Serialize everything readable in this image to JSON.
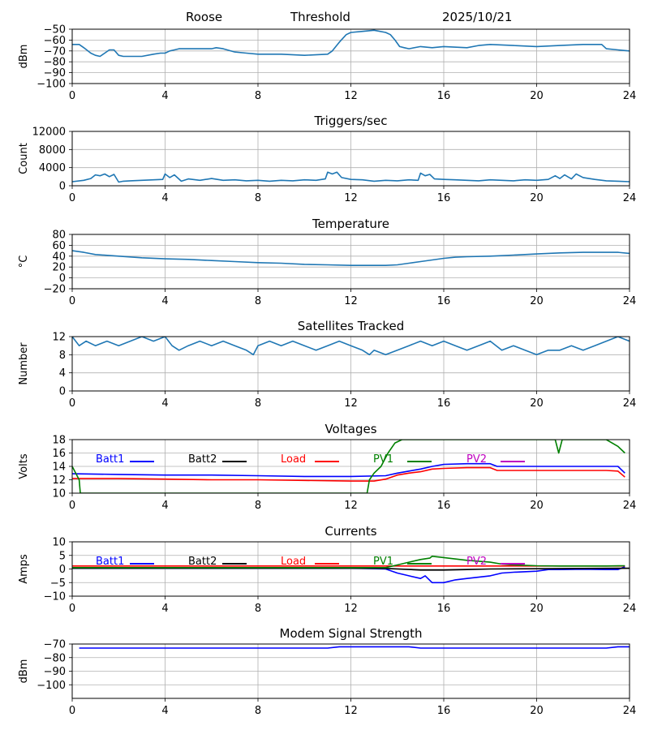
{
  "header": {
    "station": "Roose",
    "plot_kind": "Threshold",
    "date": "2025/10/21"
  },
  "colors": {
    "default_line": "#1f77b4",
    "batt1": "#0000ff",
    "batt2": "#000000",
    "load": "#ff0000",
    "pv1": "#008000",
    "pv2": "#bf00bf",
    "grid": "#b0b0b0"
  },
  "chart_data": [
    {
      "type": "line",
      "title": "",
      "xlabel": "",
      "ylabel": "dBm",
      "xlim": [
        0,
        24
      ],
      "ylim": [
        -100,
        -50
      ],
      "xticks": [
        "0",
        "4",
        "8",
        "12",
        "16",
        "20",
        "24"
      ],
      "yticks": [
        -100,
        -90,
        -80,
        -70,
        -60,
        -50
      ],
      "grid": true,
      "series": [
        {
          "color": "#1f77b4",
          "x": [
            0,
            0.3,
            0.5,
            0.8,
            1,
            1.2,
            1.4,
            1.6,
            1.8,
            2,
            2.2,
            2.5,
            3,
            3.5,
            3.8,
            4,
            4.2,
            4.4,
            4.6,
            5,
            6,
            6.2,
            6.5,
            7,
            7.5,
            8,
            9,
            10,
            11,
            11.2,
            11.5,
            11.8,
            12,
            12.5,
            13,
            13.5,
            13.7,
            13.9,
            14.1,
            14.3,
            14.5,
            15,
            15.5,
            16,
            17,
            17.5,
            18,
            19,
            20,
            21,
            22,
            22.8,
            23,
            23.5,
            24
          ],
          "y": [
            -64,
            -64,
            -67,
            -72,
            -74,
            -75,
            -72,
            -69,
            -69,
            -74,
            -75,
            -75,
            -75,
            -73,
            -72,
            -72,
            -70,
            -69,
            -68,
            -68,
            -68,
            -67,
            -68,
            -71,
            -72,
            -73,
            -73,
            -74,
            -73,
            -70,
            -62,
            -55,
            -53,
            -52,
            -51,
            -53,
            -55,
            -60,
            -66,
            -67,
            -68,
            -66,
            -67,
            -66,
            -67,
            -65,
            -64,
            -65,
            -66,
            -65,
            -64,
            -64,
            -68,
            -69,
            -70
          ]
        }
      ]
    },
    {
      "type": "line",
      "title": "Triggers/sec",
      "xlabel": "",
      "ylabel": "Count",
      "xlim": [
        0,
        24
      ],
      "ylim": [
        0,
        12000
      ],
      "xticks": [
        "0",
        "4",
        "8",
        "12",
        "16",
        "20",
        "24"
      ],
      "yticks": [
        0,
        4000,
        8000,
        12000
      ],
      "grid": true,
      "series": [
        {
          "color": "#1f77b4",
          "x": [
            0,
            0.5,
            0.8,
            1,
            1.2,
            1.4,
            1.6,
            1.8,
            2,
            2.2,
            2.5,
            3,
            3.5,
            3.9,
            4,
            4.2,
            4.4,
            4.7,
            5,
            5.5,
            6,
            6.5,
            7,
            7.5,
            8,
            8.5,
            9,
            9.5,
            10,
            10.5,
            10.9,
            11,
            11.2,
            11.4,
            11.6,
            12,
            12.5,
            13,
            13.5,
            14,
            14.5,
            14.9,
            15,
            15.2,
            15.4,
            15.6,
            16,
            16.5,
            17,
            17.5,
            18,
            18.5,
            19,
            19.5,
            20,
            20.5,
            20.8,
            21,
            21.2,
            21.5,
            21.7,
            22,
            22.5,
            23,
            23.5,
            24
          ],
          "y": [
            900,
            1200,
            1600,
            2400,
            2200,
            2600,
            2000,
            2500,
            800,
            1000,
            1100,
            1200,
            1300,
            1400,
            2600,
            1800,
            2400,
            1000,
            1500,
            1200,
            1600,
            1200,
            1300,
            1100,
            1200,
            1000,
            1200,
            1100,
            1300,
            1200,
            1500,
            3000,
            2600,
            3000,
            1800,
            1400,
            1300,
            1000,
            1200,
            1100,
            1300,
            1200,
            2800,
            2200,
            2500,
            1500,
            1400,
            1300,
            1200,
            1100,
            1300,
            1200,
            1100,
            1300,
            1200,
            1400,
            2200,
            1600,
            2400,
            1500,
            2600,
            1800,
            1400,
            1100,
            1000,
            900
          ]
        }
      ]
    },
    {
      "type": "line",
      "title": "Temperature",
      "xlabel": "",
      "ylabel": "°C",
      "xlim": [
        0,
        24
      ],
      "ylim": [
        -20,
        80
      ],
      "xticks": [
        "0",
        "4",
        "8",
        "12",
        "16",
        "20",
        "24"
      ],
      "yticks": [
        -20,
        0,
        20,
        40,
        60,
        80
      ],
      "grid": true,
      "series": [
        {
          "color": "#1f77b4",
          "x": [
            0,
            0.5,
            1,
            2,
            3,
            4,
            5,
            6,
            7,
            8,
            9,
            10,
            11,
            12,
            13,
            13.5,
            14,
            14.5,
            15,
            15.5,
            16,
            16.5,
            17,
            18,
            19,
            20,
            21,
            22,
            23,
            23.5,
            24
          ],
          "y": [
            50,
            47,
            43,
            40,
            37,
            35,
            34,
            32,
            30,
            28,
            27,
            25,
            24,
            23,
            23,
            23,
            24,
            27,
            30,
            33,
            36,
            38,
            39,
            40,
            42,
            44,
            46,
            47,
            47,
            47,
            45
          ]
        }
      ]
    },
    {
      "type": "line",
      "title": "Satellites Tracked",
      "xlabel": "",
      "ylabel": "Number",
      "xlim": [
        0,
        24
      ],
      "ylim": [
        0,
        12
      ],
      "xticks": [
        "0",
        "4",
        "8",
        "12",
        "16",
        "20",
        "24"
      ],
      "yticks": [
        0,
        4,
        8,
        12
      ],
      "grid": true,
      "series": [
        {
          "color": "#1f77b4",
          "x": [
            0,
            0.3,
            0.6,
            1,
            1.5,
            2,
            2.5,
            3,
            3.5,
            4,
            4.3,
            4.6,
            5,
            5.5,
            6,
            6.5,
            7,
            7.5,
            7.8,
            8,
            8.5,
            9,
            9.5,
            10,
            10.5,
            11,
            11.5,
            12,
            12.5,
            12.8,
            13,
            13.5,
            14,
            14.5,
            15,
            15.5,
            16,
            16.5,
            17,
            17.5,
            18,
            18.5,
            19,
            19.5,
            20,
            20.5,
            21,
            21.5,
            22,
            22.5,
            23,
            23.5,
            24
          ],
          "y": [
            12,
            10,
            11,
            10,
            11,
            10,
            11,
            12,
            11,
            12,
            10,
            9,
            10,
            11,
            10,
            11,
            10,
            9,
            8,
            10,
            11,
            10,
            11,
            10,
            9,
            10,
            11,
            10,
            9,
            8,
            9,
            8,
            9,
            10,
            11,
            10,
            11,
            10,
            9,
            10,
            11,
            9,
            10,
            9,
            8,
            9,
            9,
            10,
            9,
            10,
            11,
            12,
            11
          ]
        }
      ]
    },
    {
      "type": "line",
      "title": "Voltages",
      "xlabel": "",
      "ylabel": "Volts",
      "xlim": [
        0,
        24
      ],
      "ylim": [
        10,
        18
      ],
      "xticks": [
        "0",
        "4",
        "8",
        "12",
        "16",
        "20",
        "24"
      ],
      "yticks": [
        10,
        12,
        14,
        16,
        18
      ],
      "grid": true,
      "legend": [
        "Batt1",
        "Batt2",
        "Load",
        "PV1",
        "PV2"
      ],
      "series": [
        {
          "name": "Batt1",
          "color": "#0000ff",
          "x": [
            0,
            2,
            4,
            6,
            8,
            10,
            12,
            13.5,
            14,
            14.5,
            15,
            15.5,
            16,
            17,
            18,
            18.3,
            19,
            20,
            21,
            22,
            23,
            23.5,
            23.8
          ],
          "y": [
            12.9,
            12.8,
            12.7,
            12.7,
            12.6,
            12.5,
            12.5,
            12.6,
            13.0,
            13.3,
            13.6,
            14.0,
            14.3,
            14.4,
            14.4,
            14.0,
            14.0,
            14.0,
            14.0,
            14.0,
            14.0,
            14.0,
            13.0
          ]
        },
        {
          "name": "Batt2",
          "color": "#000000",
          "x": [],
          "y": []
        },
        {
          "name": "Load",
          "color": "#ff0000",
          "x": [
            0,
            2,
            4,
            6,
            8,
            10,
            12,
            13,
            13.5,
            14,
            14.5,
            15,
            15.5,
            16,
            17,
            18,
            18.3,
            19,
            20,
            21,
            22,
            23,
            23.5,
            23.8
          ],
          "y": [
            12.2,
            12.2,
            12.1,
            12.0,
            12.0,
            11.9,
            11.8,
            11.8,
            12.1,
            12.7,
            13.0,
            13.2,
            13.6,
            13.7,
            13.8,
            13.8,
            13.4,
            13.4,
            13.4,
            13.4,
            13.4,
            13.4,
            13.3,
            12.4
          ]
        },
        {
          "name": "PV1",
          "color": "#008000",
          "x": [
            0,
            0.15,
            0.3,
            0.35,
            12.7,
            12.8,
            13.0,
            13.3,
            13.6,
            13.9,
            14.2,
            15,
            15.5,
            16,
            17,
            18,
            19,
            20,
            20.8,
            20.95,
            21.1,
            22,
            23,
            23.5,
            23.8
          ],
          "y": [
            14.0,
            13.0,
            12.0,
            10.0,
            10.0,
            12.0,
            13.0,
            14.0,
            16.0,
            17.5,
            18.0,
            18.0,
            18.0,
            18.0,
            18.0,
            18.0,
            18.0,
            18.0,
            18.0,
            16.0,
            18.0,
            18.0,
            18.0,
            17.0,
            16.0
          ]
        },
        {
          "name": "PV2",
          "color": "#bf00bf",
          "x": [],
          "y": []
        }
      ]
    },
    {
      "type": "line",
      "title": "Currents",
      "xlabel": "",
      "ylabel": "Amps",
      "xlim": [
        0,
        24
      ],
      "ylim": [
        -10,
        10
      ],
      "xticks": [
        "0",
        "4",
        "8",
        "12",
        "16",
        "20",
        "24"
      ],
      "yticks": [
        -10,
        -5,
        0,
        5,
        10
      ],
      "grid": true,
      "legend": [
        "Batt1",
        "Batt2",
        "Load",
        "PV1",
        "PV2"
      ],
      "series": [
        {
          "name": "Batt1",
          "color": "#0000ff",
          "x": [
            0,
            4,
            8,
            12,
            13.5,
            14,
            14.5,
            15,
            15.2,
            15.5,
            16,
            16.5,
            17,
            18,
            18.5,
            19,
            20,
            20.5,
            21,
            22,
            23,
            23.5,
            23.8
          ],
          "y": [
            0.3,
            0.3,
            0.3,
            0.3,
            0.0,
            -1.5,
            -2.5,
            -3.5,
            -2.5,
            -5.0,
            -5.0,
            -4.0,
            -3.5,
            -2.5,
            -1.5,
            -1.2,
            -0.8,
            -0.2,
            -0.2,
            -0.1,
            -0.2,
            -0.2,
            0.8
          ]
        },
        {
          "name": "Batt2",
          "color": "#000000",
          "x": [
            0,
            12,
            13.5,
            15,
            16,
            17,
            18,
            20,
            22,
            24
          ],
          "y": [
            0.3,
            0.3,
            0.2,
            -0.4,
            -0.4,
            -0.2,
            0.0,
            0.1,
            0.2,
            0.3
          ]
        },
        {
          "name": "Load",
          "color": "#ff0000",
          "x": [
            0,
            4,
            8,
            12,
            16,
            20,
            23.8
          ],
          "y": [
            1.1,
            1.1,
            1.1,
            1.1,
            1.1,
            1.1,
            1.1
          ]
        },
        {
          "name": "PV1",
          "color": "#008000",
          "x": [
            0,
            13.5,
            14,
            14.5,
            15,
            15.4,
            15.5,
            16,
            17,
            18,
            18.5,
            19,
            20,
            21,
            22,
            23,
            23.8
          ],
          "y": [
            0.5,
            0.5,
            1.5,
            2.5,
            3.5,
            4.0,
            4.7,
            4.2,
            3.2,
            2.5,
            1.8,
            1.5,
            1.2,
            1.1,
            1.1,
            1.1,
            1.2
          ]
        },
        {
          "name": "PV2",
          "color": "#bf00bf",
          "x": [],
          "y": []
        }
      ]
    },
    {
      "type": "line",
      "title": "Modem Signal Strength",
      "xlabel": "",
      "ylabel": "dBm",
      "xlim": [
        0,
        24
      ],
      "ylim": [
        -110,
        -70
      ],
      "xticks": [
        "0",
        "4",
        "8",
        "12",
        "16",
        "20",
        "24"
      ],
      "yticks": [
        -100,
        -90,
        -80,
        -70
      ],
      "grid": true,
      "series": [
        {
          "color": "#0000ff",
          "x": [
            0.3,
            2,
            4,
            6,
            8,
            10,
            11,
            11.5,
            12,
            13,
            14,
            14.5,
            15,
            16,
            18,
            20,
            22,
            23,
            23.5,
            24
          ],
          "y": [
            -73,
            -73,
            -73,
            -73,
            -73,
            -73,
            -73,
            -72,
            -72,
            -72,
            -72,
            -72,
            -73,
            -73,
            -73,
            -73,
            -73,
            -73,
            -72,
            -72
          ]
        }
      ]
    }
  ]
}
